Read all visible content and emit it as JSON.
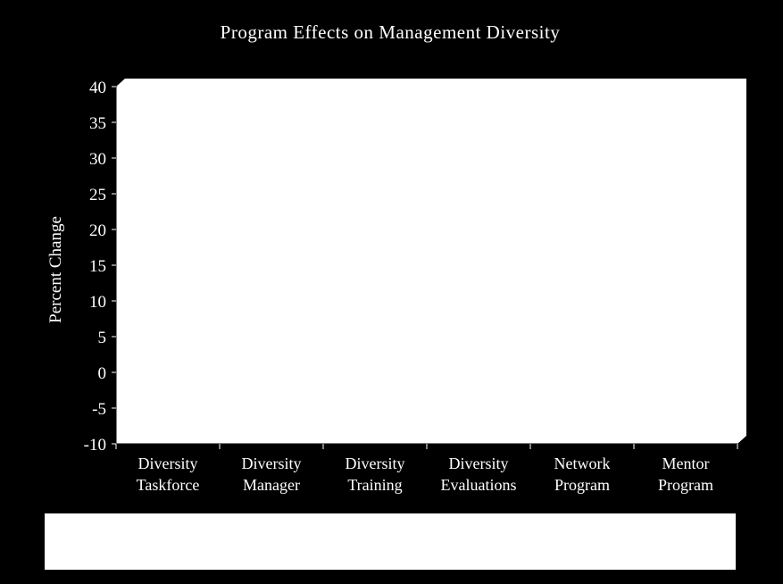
{
  "chart_data": {
    "type": "bar",
    "title": "Program Effects on Management Diversity",
    "xlabel": "",
    "ylabel": "Percent Change",
    "ylim": [
      -10,
      40
    ],
    "yticks": [
      "40",
      "35",
      "30",
      "25",
      "20",
      "15",
      "10",
      "5",
      "0",
      "-5",
      "-10"
    ],
    "categories": [
      [
        "Diversity",
        "Taskforce"
      ],
      [
        "Diversity",
        "Manager"
      ],
      [
        "Diversity",
        "Training"
      ],
      [
        "Diversity",
        "Evaluations"
      ],
      [
        "Network",
        "Program"
      ],
      [
        "Mentor",
        "Program"
      ]
    ],
    "series": [],
    "grid": false,
    "colors": {
      "background": "#000000",
      "plot_area": "#ffffff",
      "text": "#ffffff",
      "legend_area": "#ffffff"
    }
  }
}
